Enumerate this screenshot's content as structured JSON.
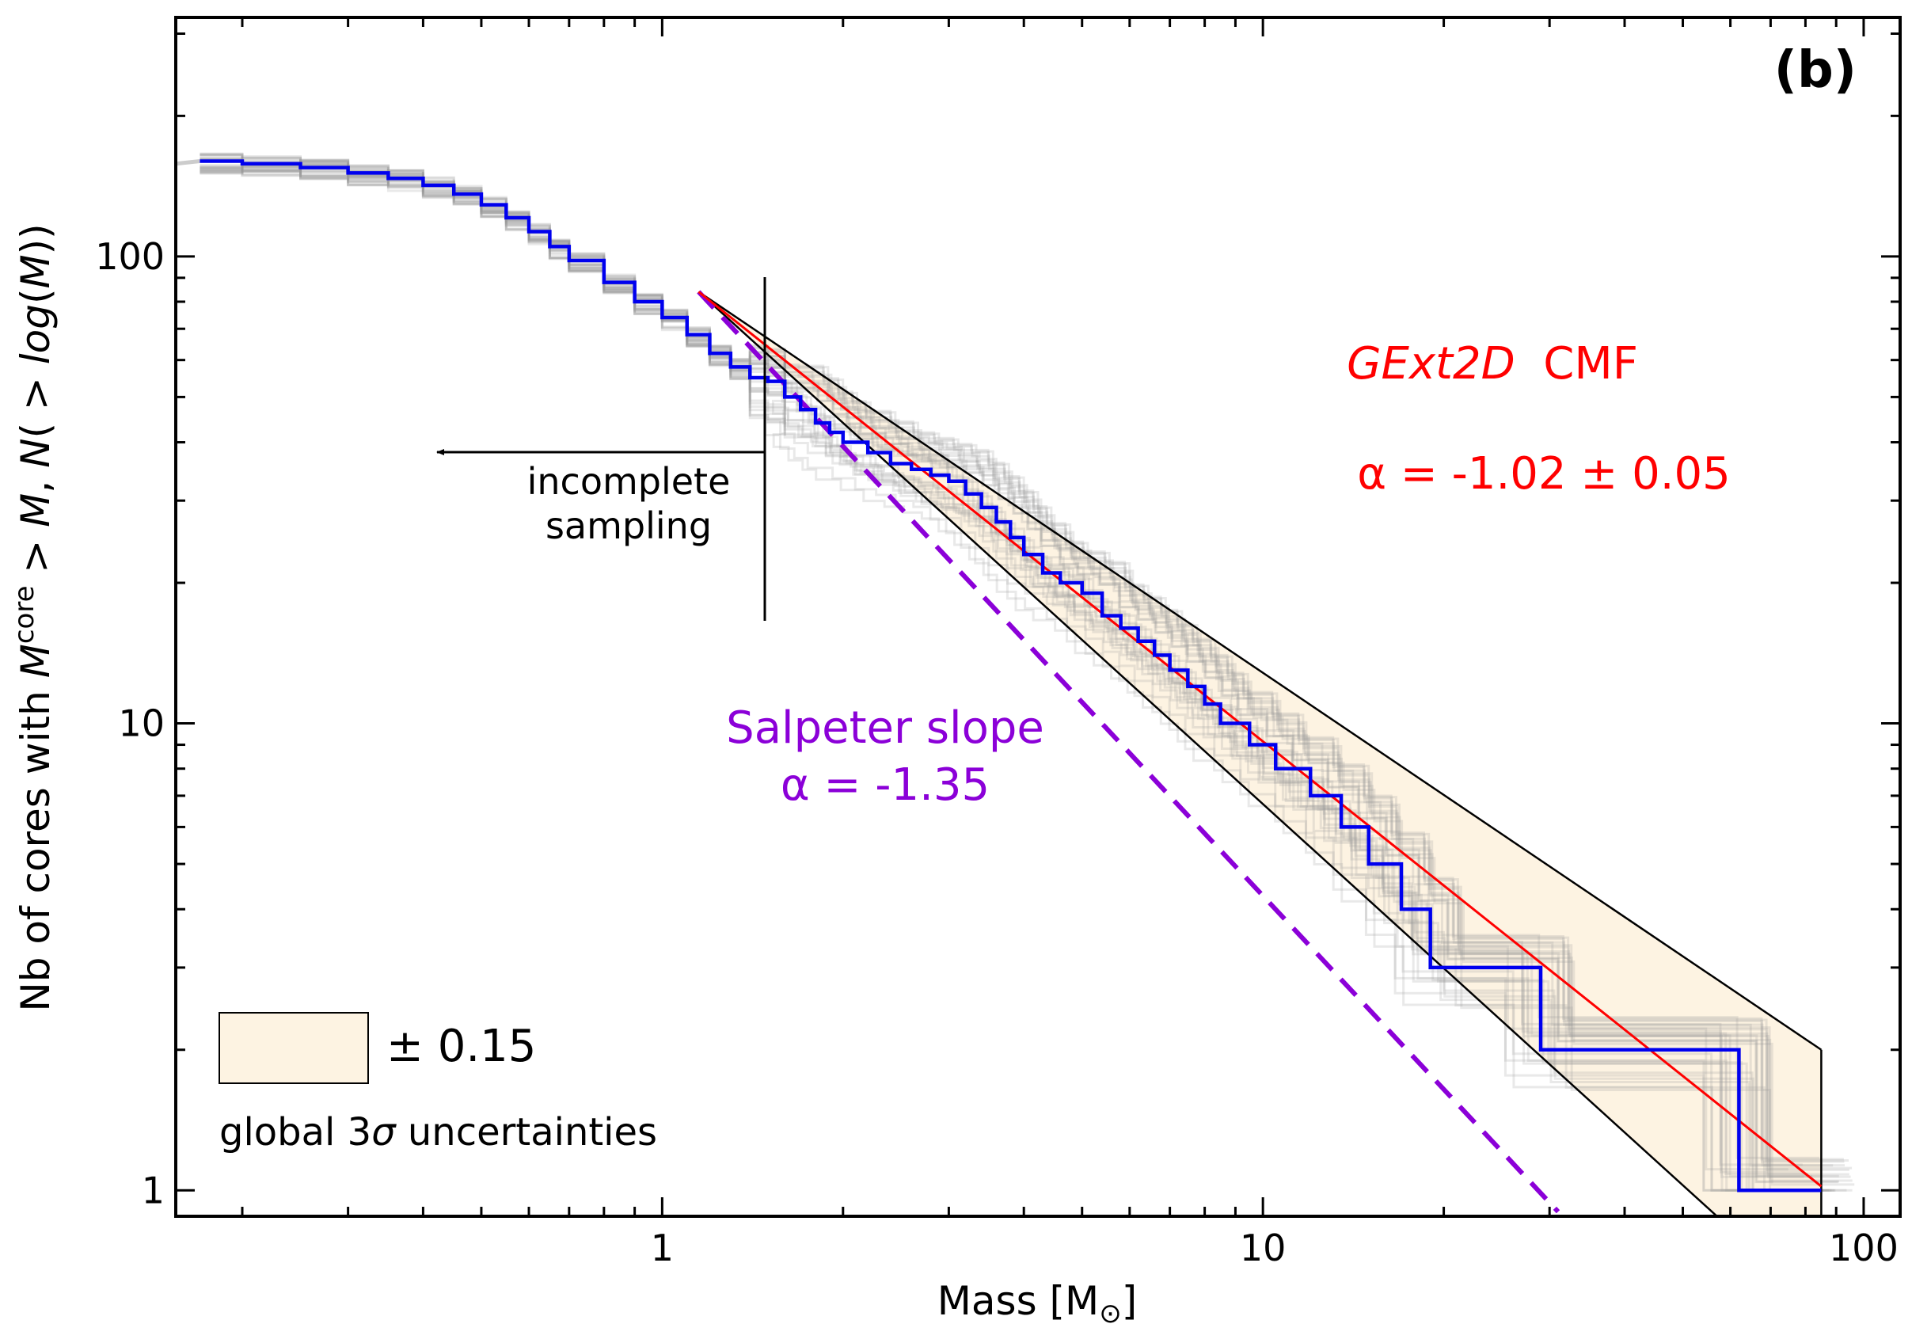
{
  "chart_data": {
    "type": "line",
    "panel_label": "(b)",
    "xlabel_prefix": "Mass [M",
    "xlabel_sub": "⊙",
    "xlabel_suffix": "]",
    "ylabel_main": "Nb of cores with ",
    "ylabel_M": "M",
    "ylabel_sup": "core",
    "ylabel_rest": " > ",
    "ylabel_M2": "M",
    "ylabel_comma": ", ",
    "ylabel_N": "N",
    "ylabel_paren": "( > ",
    "ylabel_log": "log",
    "ylabel_open": "(",
    "ylabel_M3": "M",
    "ylabel_close": "))",
    "xscale": "log",
    "yscale": "log",
    "xlim": [
      0.155,
      115
    ],
    "ylim": [
      0.88,
      325
    ],
    "x_ticks": [
      1,
      10,
      100
    ],
    "x_tick_labels": [
      "1",
      "10",
      "100"
    ],
    "y_ticks": [
      1,
      10,
      100
    ],
    "y_tick_labels": [
      "1",
      "10",
      "100"
    ],
    "series": [
      {
        "name": "GExt2D CMF",
        "kind": "cumulative-step",
        "color": "#0000ee",
        "x": [
          0.17,
          0.2,
          0.25,
          0.3,
          0.35,
          0.4,
          0.45,
          0.5,
          0.55,
          0.6,
          0.65,
          0.7,
          0.8,
          0.9,
          1.0,
          1.1,
          1.2,
          1.3,
          1.4,
          1.5,
          1.6,
          1.7,
          1.8,
          1.9,
          2.0,
          2.2,
          2.4,
          2.6,
          2.8,
          3.0,
          3.2,
          3.4,
          3.6,
          3.8,
          4.0,
          4.3,
          4.6,
          5.0,
          5.4,
          5.8,
          6.2,
          6.6,
          7.0,
          7.5,
          8.0,
          8.5,
          9.0,
          9.5,
          10.5,
          12.0,
          13.5,
          15.0,
          17.0,
          19.0,
          29.0,
          62.0,
          85.0
        ],
        "y": [
          160,
          158,
          155,
          151,
          147,
          142,
          136,
          129,
          121,
          113,
          105,
          98,
          88,
          80,
          74,
          68,
          62,
          58,
          55,
          54,
          50,
          47,
          44,
          42,
          40,
          38,
          36,
          35,
          34,
          33,
          31,
          29,
          27,
          25,
          23,
          21,
          20,
          19,
          17,
          16,
          15,
          14,
          13,
          12,
          11,
          10,
          10,
          9,
          8,
          7,
          6,
          5,
          4,
          3,
          2,
          1,
          1
        ]
      },
      {
        "name": "fit",
        "kind": "power-law",
        "color": "#ff0000",
        "x": [
          1.15,
          85
        ],
        "y": [
          84,
          1.02
        ]
      },
      {
        "name": "fit-upper",
        "kind": "power-law",
        "color": "#000000",
        "x": [
          1.15,
          85
        ],
        "y": [
          84,
          2.0
        ]
      },
      {
        "name": "fit-lower",
        "kind": "power-law",
        "color": "#000000",
        "x": [
          1.15,
          57
        ],
        "y": [
          84,
          0.88
        ]
      },
      {
        "name": "Salpeter slope",
        "kind": "dashed",
        "color": "#8b00d8",
        "x": [
          1.15,
          31
        ],
        "y": [
          84,
          0.9
        ]
      }
    ],
    "annotations": {
      "cmf_title_italic": "GExt2D",
      "cmf_title_rest": "  CMF",
      "cmf_alpha": "α = -1.02 ± 0.05",
      "salpeter_line1": "Salpeter slope",
      "salpeter_line2": "α = -1.35",
      "incomplete_line1": "incomplete",
      "incomplete_line2": "sampling",
      "legend_value": "± 0.15",
      "legend_caption_prefix": "global 3",
      "legend_caption_sigma": "σ",
      "legend_caption_suffix": " uncertainties"
    },
    "colors": {
      "band_fill": "#fdf3e2",
      "observed": "#0000ee",
      "fit": "#ff0000",
      "salpeter": "#8b00d8",
      "bootstrap": "#9a9a9a"
    }
  }
}
